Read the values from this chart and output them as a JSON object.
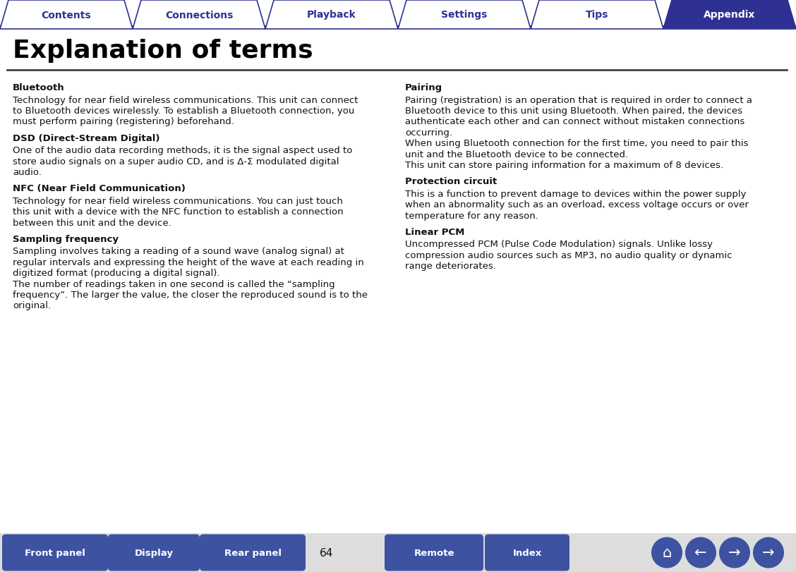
{
  "title": "Explanation of terms",
  "tab_labels": [
    "Contents",
    "Connections",
    "Playback",
    "Settings",
    "Tips",
    "Appendix"
  ],
  "active_tab": "Appendix",
  "tab_color_active": "#2E3192",
  "tab_color_inactive": "#FFFFFF",
  "tab_text_color_active": "#FFFFFF",
  "tab_text_color_inactive": "#2E3192",
  "tab_border_color": "#2E3192",
  "page_bg": "#FFFFFF",
  "title_color": "#000000",
  "divider_color": "#444444",
  "bottom_bg_color": "#DDDDDD",
  "btn_color": "#3D52A0",
  "bottom_buttons": [
    "Front panel",
    "Display",
    "Rear panel",
    "Remote",
    "Index"
  ],
  "page_number": "64",
  "left_column": [
    {
      "heading": "Bluetooth",
      "text": "Technology for near field wireless communications. This unit can connect\nto Bluetooth devices wirelessly. To establish a Bluetooth connection, you\nmust perform pairing (registering) beforehand."
    },
    {
      "heading": "DSD (Direct-Stream Digital)",
      "text": "One of the audio data recording methods, it is the signal aspect used to\nstore audio signals on a super audio CD, and is Δ-Σ modulated digital\naudio."
    },
    {
      "heading": "NFC (Near Field Communication)",
      "text": "Technology for near field wireless communications. You can just touch\nthis unit with a device with the NFC function to establish a connection\nbetween this unit and the device."
    },
    {
      "heading": "Sampling frequency",
      "text": "Sampling involves taking a reading of a sound wave (analog signal) at\nregular intervals and expressing the height of the wave at each reading in\ndigitized format (producing a digital signal).\nThe number of readings taken in one second is called the “sampling\nfrequency”. The larger the value, the closer the reproduced sound is to the\noriginal."
    }
  ],
  "right_column": [
    {
      "heading": "Pairing",
      "text": "Pairing (registration) is an operation that is required in order to connect a\nBluetooth device to this unit using Bluetooth. When paired, the devices\nauthenticate each other and can connect without mistaken connections\noccurring.\nWhen using Bluetooth connection for the first time, you need to pair this\nunit and the Bluetooth device to be connected.\nThis unit can store pairing information for a maximum of 8 devices."
    },
    {
      "heading": "Protection circuit",
      "text": "This is a function to prevent damage to devices within the power supply\nwhen an abnormality such as an overload, excess voltage occurs or over\ntemperature for any reason."
    },
    {
      "heading": "Linear PCM",
      "text": "Uncompressed PCM (Pulse Code Modulation) signals. Unlike lossy\ncompression audio sources such as MP3, no audio quality or dynamic\nrange deteriorates."
    }
  ]
}
